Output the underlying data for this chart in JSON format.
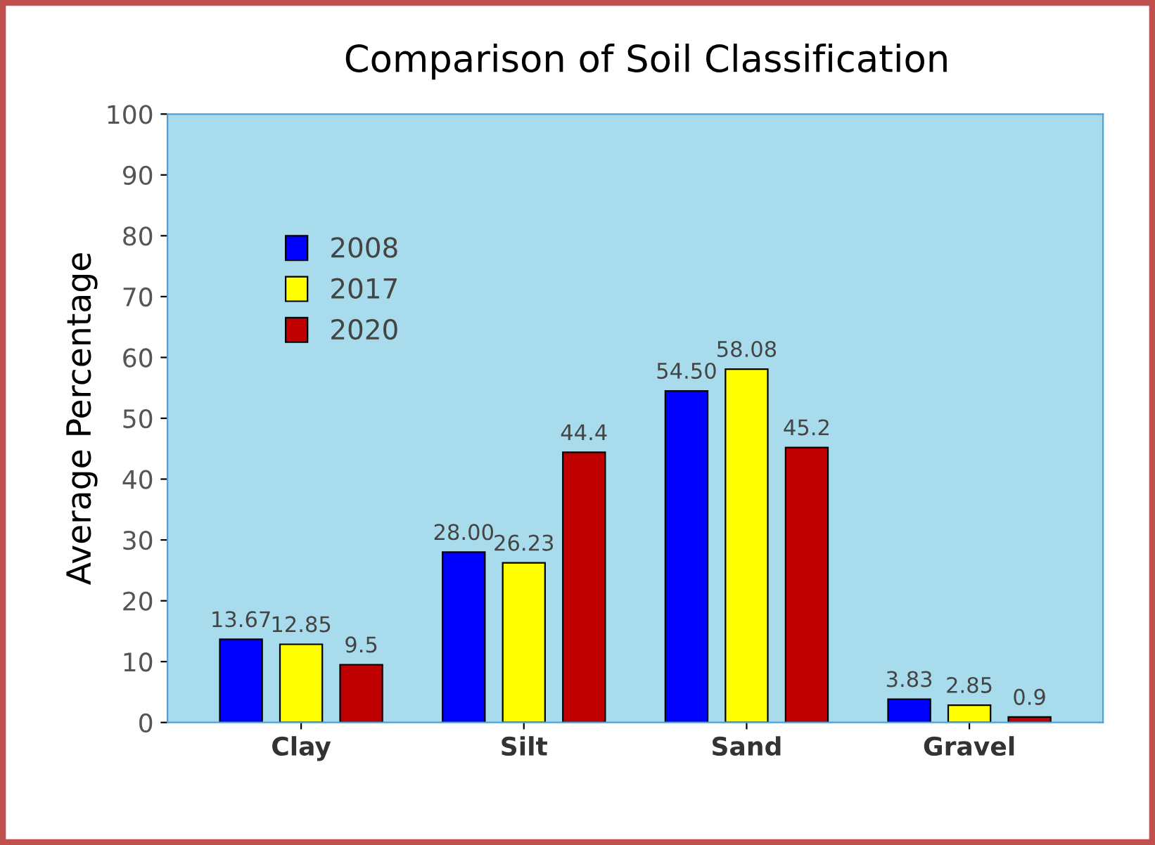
{
  "chart_data": {
    "type": "bar",
    "title": "Comparison of Soil Classification",
    "ylabel": "Average Percentage",
    "categories": [
      "Clay",
      "Silt",
      "Sand",
      "Gravel"
    ],
    "series": [
      {
        "name": "2008",
        "color": "#0000ff",
        "values": [
          13.67,
          28.0,
          54.5,
          3.83
        ],
        "value_labels": [
          "13.67",
          "28.00",
          "54.50",
          "3.83"
        ]
      },
      {
        "name": "2017",
        "color": "#ffff00",
        "values": [
          12.85,
          26.23,
          58.08,
          2.85
        ],
        "value_labels": [
          "12.85",
          "26.23",
          "58.08",
          "2.85"
        ]
      },
      {
        "name": "2020",
        "color": "#c00000",
        "values": [
          9.5,
          44.4,
          45.2,
          0.9
        ],
        "value_labels": [
          "9.5",
          "44.4",
          "45.2",
          "0.9"
        ]
      }
    ],
    "ylim": [
      0,
      100
    ],
    "yticks": [
      0,
      10,
      20,
      30,
      40,
      50,
      60,
      70,
      80,
      90,
      100
    ],
    "grid": false,
    "legend": "top left"
  }
}
